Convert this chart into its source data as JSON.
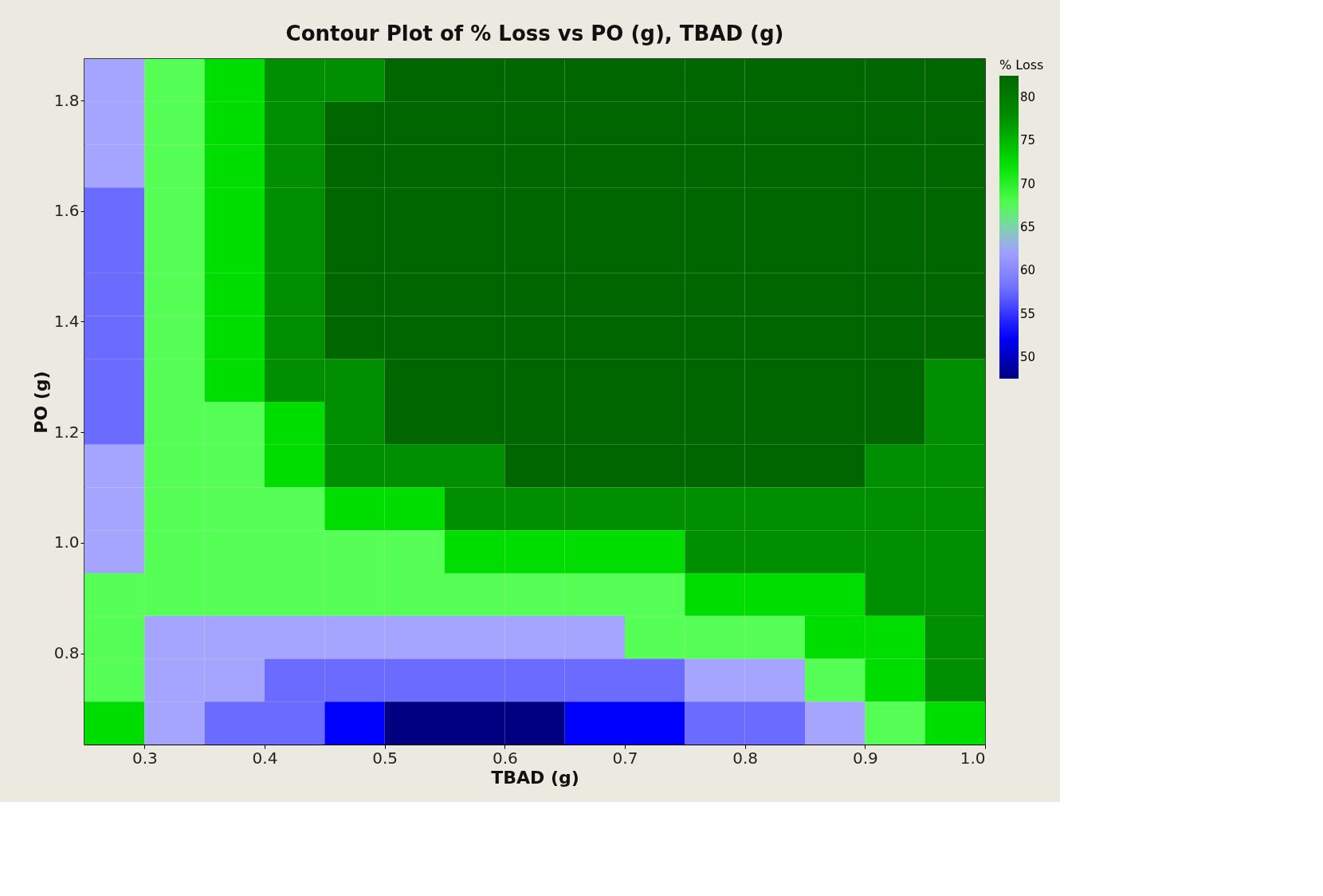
{
  "chart_data": {
    "type": "heatmap",
    "title": "Contour Plot of % Loss vs PO (g), TBAD (g)",
    "xlabel": "TBAD (g)",
    "ylabel": "PO (g)",
    "clabel": "% Loss",
    "clim": [
      47.5,
      82.5
    ],
    "grid": false,
    "x": [
      0.275,
      0.325,
      0.375,
      0.425,
      0.475,
      0.525,
      0.575,
      0.625,
      0.675,
      0.725,
      0.775,
      0.825,
      0.875,
      0.925,
      0.975
    ],
    "y": [
      1.83625,
      1.75875,
      1.68125,
      1.60375,
      1.52625,
      1.44875,
      1.37125,
      1.29375,
      1.21625,
      1.13875,
      1.06125,
      0.98375,
      0.90625,
      0.82875,
      0.75125,
      0.67375
    ],
    "xlim": [
      0.25,
      1.0
    ],
    "ylim": [
      0.635,
      1.875
    ],
    "xticks": [
      0.3,
      0.4,
      0.5,
      0.6,
      0.7,
      0.8,
      0.9,
      {
        "value": 1.0,
        "label": "1.0"
      }
    ],
    "yticks": [
      0.8,
      {
        "value": 1.0,
        "label": "1.0"
      },
      1.2,
      1.4,
      1.6,
      1.8
    ],
    "cticks": [
      50,
      55,
      60,
      65,
      70,
      75,
      80
    ],
    "colors": [
      "#000080",
      "#0000ff",
      "#6b6bff",
      "#a5a5ff",
      "#55ff55",
      "#00dd00",
      "#008f00",
      "#006700"
    ],
    "cells": [
      [
        62.5,
        67.5,
        72.5,
        77.5,
        77.5,
        82.5,
        82.5,
        82.5,
        82.5,
        82.5,
        82.5,
        82.5,
        82.5,
        82.5,
        82.5
      ],
      [
        62.5,
        67.5,
        72.5,
        77.5,
        82.5,
        82.5,
        82.5,
        82.5,
        82.5,
        82.5,
        82.5,
        82.5,
        82.5,
        82.5,
        82.5
      ],
      [
        62.5,
        67.5,
        72.5,
        77.5,
        82.5,
        82.5,
        82.5,
        82.5,
        82.5,
        82.5,
        82.5,
        82.5,
        82.5,
        82.5,
        82.5
      ],
      [
        57.5,
        67.5,
        72.5,
        77.5,
        82.5,
        82.5,
        82.5,
        82.5,
        82.5,
        82.5,
        82.5,
        82.5,
        82.5,
        82.5,
        82.5
      ],
      [
        57.5,
        67.5,
        72.5,
        77.5,
        82.5,
        82.5,
        82.5,
        82.5,
        82.5,
        82.5,
        82.5,
        82.5,
        82.5,
        82.5,
        82.5
      ],
      [
        57.5,
        67.5,
        72.5,
        77.5,
        82.5,
        82.5,
        82.5,
        82.5,
        82.5,
        82.5,
        82.5,
        82.5,
        82.5,
        82.5,
        82.5
      ],
      [
        57.5,
        67.5,
        72.5,
        77.5,
        82.5,
        82.5,
        82.5,
        82.5,
        82.5,
        82.5,
        82.5,
        82.5,
        82.5,
        82.5,
        82.5
      ],
      [
        57.5,
        67.5,
        72.5,
        77.5,
        77.5,
        82.5,
        82.5,
        82.5,
        82.5,
        82.5,
        82.5,
        82.5,
        82.5,
        82.5,
        77.5
      ],
      [
        57.5,
        67.5,
        67.5,
        72.5,
        77.5,
        82.5,
        82.5,
        82.5,
        82.5,
        82.5,
        82.5,
        82.5,
        82.5,
        82.5,
        77.5
      ],
      [
        62.5,
        67.5,
        67.5,
        72.5,
        77.5,
        77.5,
        77.5,
        82.5,
        82.5,
        82.5,
        82.5,
        82.5,
        82.5,
        77.5,
        77.5
      ],
      [
        62.5,
        67.5,
        67.5,
        67.5,
        72.5,
        72.5,
        77.5,
        77.5,
        77.5,
        77.5,
        77.5,
        77.5,
        77.5,
        77.5,
        77.5
      ],
      [
        62.5,
        67.5,
        67.5,
        67.5,
        67.5,
        67.5,
        72.5,
        72.5,
        72.5,
        72.5,
        77.5,
        77.5,
        77.5,
        77.5,
        77.5
      ],
      [
        67.5,
        67.5,
        67.5,
        67.5,
        67.5,
        67.5,
        67.5,
        67.5,
        67.5,
        67.5,
        72.5,
        72.5,
        72.5,
        77.5,
        77.5
      ],
      [
        67.5,
        62.5,
        62.5,
        62.5,
        62.5,
        62.5,
        62.5,
        62.5,
        62.5,
        67.5,
        67.5,
        67.5,
        72.5,
        72.5,
        77.5
      ],
      [
        67.5,
        62.5,
        62.5,
        57.5,
        57.5,
        57.5,
        57.5,
        57.5,
        57.5,
        57.5,
        62.5,
        62.5,
        67.5,
        72.5,
        77.5
      ],
      [
        72.5,
        62.5,
        57.5,
        57.5,
        52.5,
        47.5,
        47.5,
        47.5,
        52.5,
        52.5,
        57.5,
        57.5,
        62.5,
        67.5,
        72.5
      ]
    ]
  }
}
